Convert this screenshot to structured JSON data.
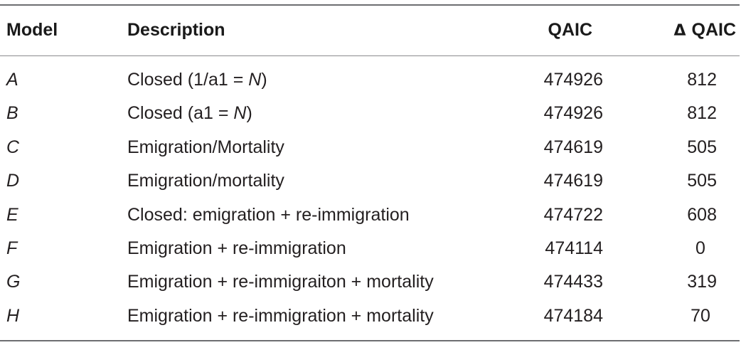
{
  "table": {
    "headers": {
      "model": "Model",
      "description": "Description",
      "qaic": "QAIC",
      "delta_symbol": "Δ",
      "delta_label": "QAIC"
    },
    "rows": [
      {
        "model": "A",
        "desc_pre": "Closed (1/a1 = ",
        "desc_n": "N",
        "desc_post": ")",
        "qaic": "474926",
        "delta": "812"
      },
      {
        "model": "B",
        "desc_pre": "Closed (a1 = ",
        "desc_n": "N",
        "desc_post": ")",
        "qaic": "474926",
        "delta": "812"
      },
      {
        "model": "C",
        "desc_pre": "Emigration/Mortality",
        "desc_n": "",
        "desc_post": "",
        "qaic": "474619",
        "delta": "505"
      },
      {
        "model": "D",
        "desc_pre": "Emigration/mortality",
        "desc_n": "",
        "desc_post": "",
        "qaic": "474619",
        "delta": "505"
      },
      {
        "model": "E",
        "desc_pre": "Closed: emigration + re-immigration",
        "desc_n": "",
        "desc_post": "",
        "qaic": "474722",
        "delta": "608"
      },
      {
        "model": "F",
        "desc_pre": "Emigration + re-immigration",
        "desc_n": "",
        "desc_post": "",
        "qaic": "474114",
        "delta": "0"
      },
      {
        "model": "G",
        "desc_pre": "Emigration + re-immigraiton + mortality",
        "desc_n": "",
        "desc_post": "",
        "qaic": "474433",
        "delta": "319"
      },
      {
        "model": "H",
        "desc_pre": "Emigration + re-immigration + mortality",
        "desc_n": "",
        "desc_post": "",
        "qaic": "474184",
        "delta": "70"
      }
    ]
  }
}
